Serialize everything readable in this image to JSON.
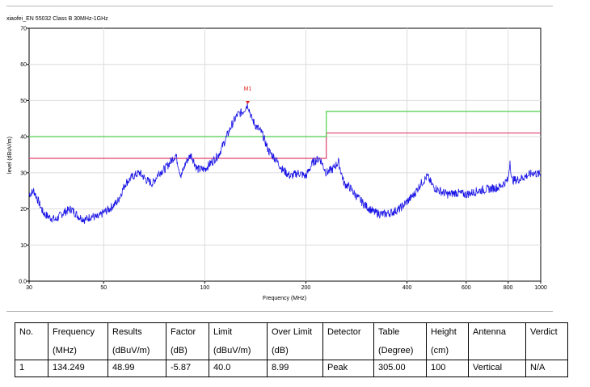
{
  "chart_data": {
    "type": "line",
    "title": "xiaofei_EN 55032 Class B 30MHz-1GHz",
    "xlabel": "Frequency (MHz)",
    "ylabel": "level (dBuV/m)",
    "xscale": "log",
    "xlim": [
      30,
      1000
    ],
    "ylim": [
      0,
      70
    ],
    "grid": true,
    "x_ticks": [
      30,
      50,
      100,
      200,
      400,
      600,
      800,
      1000
    ],
    "x_tick_labels": [
      "30",
      "50",
      "100",
      "200",
      "400",
      "600",
      "800",
      "1000"
    ],
    "y_ticks": [
      0,
      10,
      20,
      30,
      40,
      50,
      60,
      70
    ],
    "y_tick_labels": [
      "0.0",
      "10",
      "20",
      "30",
      "40",
      "50",
      "60",
      "70"
    ],
    "series": [
      {
        "color": "#1a14e6",
        "x": [
          30,
          31,
          32,
          33,
          34,
          35,
          36,
          38,
          40,
          42,
          44,
          46,
          48,
          50,
          52,
          55,
          58,
          61,
          64,
          67,
          70,
          73,
          76,
          79,
          82,
          85,
          88,
          91,
          95,
          100,
          105,
          110,
          115,
          120,
          125,
          130,
          134.249,
          138,
          142,
          148,
          155,
          162,
          170,
          180,
          190,
          200,
          210,
          220,
          225,
          230,
          240,
          250,
          260,
          270,
          280,
          300,
          320,
          340,
          360,
          380,
          400,
          420,
          440,
          460,
          480,
          500,
          530,
          560,
          600,
          650,
          700,
          750,
          800,
          810,
          820,
          850,
          900,
          950,
          1000
        ],
        "values": [
          24,
          25,
          22,
          19,
          18,
          17.5,
          17,
          19,
          20,
          18,
          17,
          18,
          17.5,
          19,
          20,
          22,
          27,
          29,
          30,
          28,
          27,
          30,
          31,
          33,
          35,
          29,
          33,
          35,
          31,
          31,
          33,
          35,
          39,
          43,
          46,
          47,
          48.99,
          45,
          43,
          41,
          36,
          34,
          31,
          29,
          30,
          29,
          33,
          34,
          32,
          30,
          31,
          33,
          27,
          26,
          24,
          21,
          19,
          18.5,
          19,
          20,
          22,
          24,
          27,
          29,
          26,
          25,
          24,
          24.5,
          24,
          25,
          25.5,
          26,
          28,
          33.5,
          28,
          28,
          29,
          30,
          29.5
        ]
      }
    ],
    "limit_lines": [
      {
        "color": "#e0406c",
        "segments": [
          {
            "x": [
              30,
              230
            ],
            "y": 34
          },
          {
            "x": [
              230,
              1000
            ],
            "y": 41
          }
        ]
      },
      {
        "color": "#4ccf4c",
        "segments": [
          {
            "x": [
              30,
              230
            ],
            "y": 40
          },
          {
            "x": [
              230,
              1000
            ],
            "y": 47
          }
        ]
      }
    ],
    "markers": [
      {
        "label": "M1",
        "x": 134.249,
        "y": 48.99,
        "color": "#e02020"
      }
    ]
  },
  "table": {
    "headers": [
      [
        "No.",
        ""
      ],
      [
        "Frequency",
        "(MHz)"
      ],
      [
        "Results",
        "(dBuV/m)"
      ],
      [
        "Factor",
        "(dB)"
      ],
      [
        "Limit",
        "(dBuV/m)"
      ],
      [
        "Over Limit",
        "(dB)"
      ],
      [
        "Detector",
        ""
      ],
      [
        "Table",
        "(Degree)"
      ],
      [
        "Height",
        "(cm)"
      ],
      [
        "Antenna",
        ""
      ],
      [
        "Verdict",
        ""
      ]
    ],
    "rows": [
      [
        "1",
        "134.249",
        "48.99",
        "-5.87",
        "40.0",
        "8.99",
        "Peak",
        "305.00",
        "100",
        "Vertical",
        "N/A"
      ]
    ]
  }
}
